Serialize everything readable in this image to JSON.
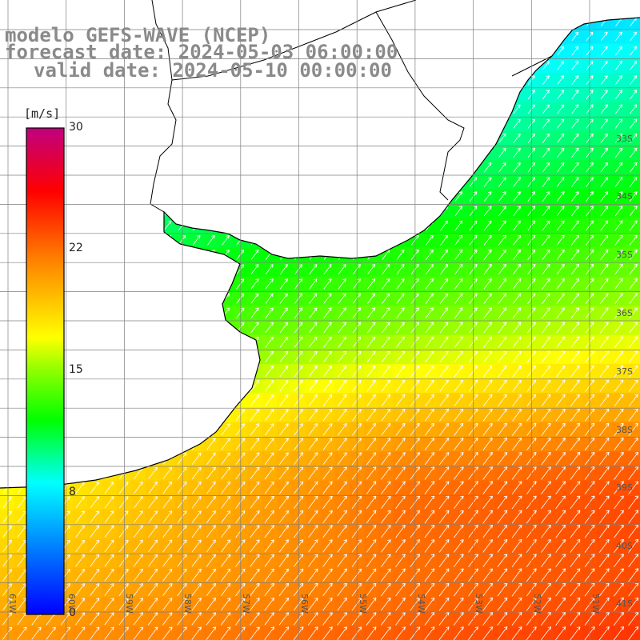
{
  "title": {
    "line1": "modelo GEFS-WAVE (NCEP)",
    "line2": "forecast date: 2024-05-03 06:00:00",
    "line3": "valid date: 2024-05-10 00:00:00"
  },
  "colorbar": {
    "unit": "[m/s]",
    "ticks": [
      "30",
      "22",
      "15",
      "8",
      "0"
    ],
    "stops": [
      "#0000ff",
      "#00b8ff",
      "#00ffff",
      "#00ff00",
      "#ffff00",
      "#ff8000",
      "#ff0000",
      "#c00080"
    ]
  },
  "map": {
    "lat_labels": [
      "33S",
      "34S",
      "35S",
      "36S",
      "37S",
      "38S",
      "39S",
      "40S",
      "41S"
    ],
    "lon_labels": [
      "61W",
      "60W",
      "59W",
      "58W",
      "57W",
      "56W",
      "55W",
      "54W",
      "53W",
      "52W",
      "51W"
    ],
    "land_color": "#ffffff",
    "coast_color": "#000000",
    "grid_color": "#7f7f7f",
    "arrow_color": "#ffffff"
  }
}
